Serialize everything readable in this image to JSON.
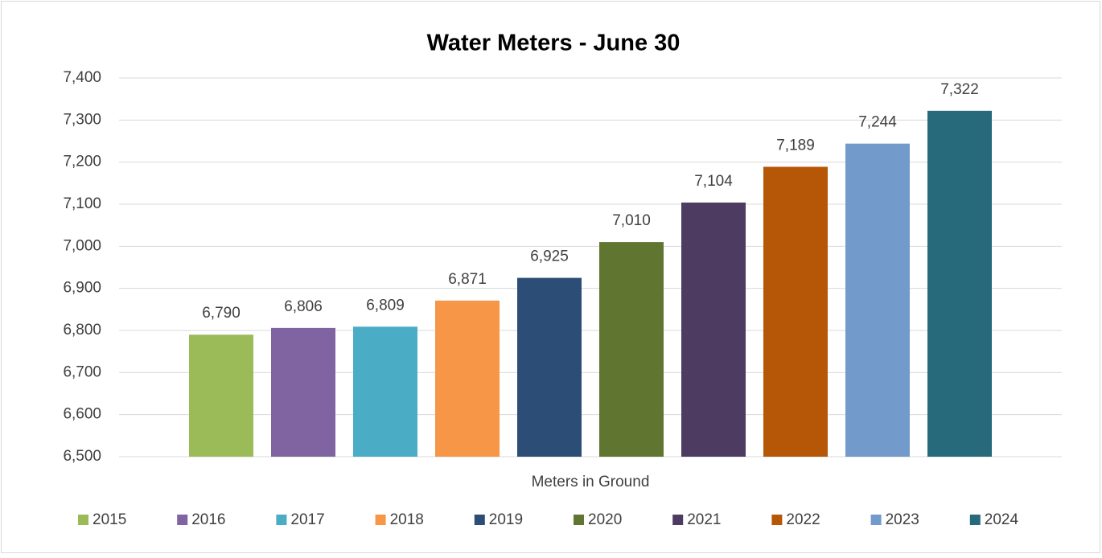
{
  "chart_data": {
    "type": "bar",
    "title": "Water Meters - June 30",
    "categories": [
      "Meters in Ground"
    ],
    "series": [
      {
        "name": "2015",
        "color": "#9bbb59",
        "values": [
          6790
        ],
        "value_labels": [
          "6,790"
        ]
      },
      {
        "name": "2016",
        "color": "#8064a2",
        "values": [
          6806
        ],
        "value_labels": [
          "6,806"
        ]
      },
      {
        "name": "2017",
        "color": "#4bacc6",
        "values": [
          6809
        ],
        "value_labels": [
          "6,809"
        ]
      },
      {
        "name": "2018",
        "color": "#f79646",
        "values": [
          6871
        ],
        "value_labels": [
          "6,871"
        ]
      },
      {
        "name": "2019",
        "color": "#2c4d75",
        "values": [
          6925
        ],
        "value_labels": [
          "6,925"
        ]
      },
      {
        "name": "2020",
        "color": "#5f7530",
        "values": [
          7010
        ],
        "value_labels": [
          "7,010"
        ]
      },
      {
        "name": "2021",
        "color": "#4d3b62",
        "values": [
          7104
        ],
        "value_labels": [
          "7,104"
        ]
      },
      {
        "name": "2022",
        "color": "#b65708",
        "values": [
          7189
        ],
        "value_labels": [
          "7,189"
        ]
      },
      {
        "name": "2023",
        "color": "#729aca",
        "values": [
          7244
        ],
        "value_labels": [
          "7,244"
        ]
      },
      {
        "name": "2024",
        "color": "#276a7c",
        "values": [
          7322
        ],
        "value_labels": [
          "7,322"
        ]
      }
    ],
    "ylim": [
      6500,
      7400
    ],
    "yticks": [
      {
        "value": 6500,
        "label": "6,500"
      },
      {
        "value": 6600,
        "label": "6,600"
      },
      {
        "value": 6700,
        "label": "6,700"
      },
      {
        "value": 6800,
        "label": "6,800"
      },
      {
        "value": 6900,
        "label": "6,900"
      },
      {
        "value": 7000,
        "label": "7,000"
      },
      {
        "value": 7100,
        "label": "7,100"
      },
      {
        "value": 7200,
        "label": "7,200"
      },
      {
        "value": 7300,
        "label": "7,300"
      },
      {
        "value": 7400,
        "label": "7,400"
      }
    ],
    "grid": true,
    "legend": "bottom"
  }
}
